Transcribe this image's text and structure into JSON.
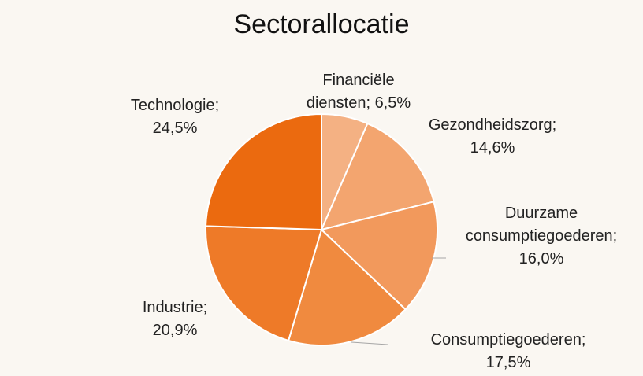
{
  "chart_data": {
    "type": "pie",
    "title": "Sectorallocatie",
    "categories": [
      "Financiële diensten;",
      "Gezondheidszorg;",
      "Duurzame consumptiegoederen;",
      "Consumptiegoederen;",
      "Industrie;",
      "Technologie;"
    ],
    "values": [
      6.5,
      14.6,
      16.0,
      17.5,
      20.9,
      24.5
    ],
    "value_labels": [
      "6,5%",
      "14,6%",
      "16,0%",
      "17,5%",
      "20,9%",
      "24,5%"
    ],
    "colors": [
      "#f4b183",
      "#f3a56f",
      "#f2995c",
      "#f08a3f",
      "#ee7a28",
      "#eb6a0f"
    ]
  }
}
